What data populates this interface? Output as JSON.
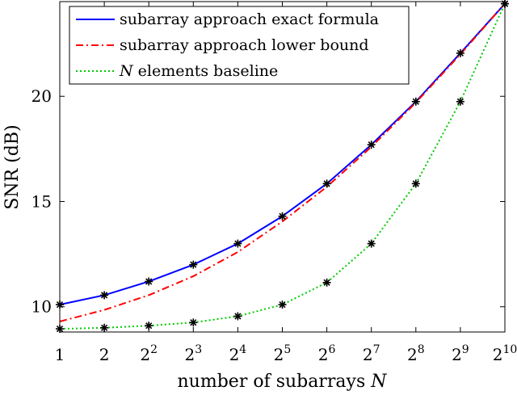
{
  "chart_data": {
    "type": "line",
    "xlabel_text": "number of subarrays ",
    "xlabel_var": "N",
    "ylabel": "SNR (dB)",
    "x": [
      0,
      1,
      2,
      3,
      4,
      5,
      6,
      7,
      8,
      9,
      10
    ],
    "xticks": [
      {
        "base": "1",
        "sup": ""
      },
      {
        "base": "2",
        "sup": ""
      },
      {
        "base": "2",
        "sup": "2"
      },
      {
        "base": "2",
        "sup": "3"
      },
      {
        "base": "2",
        "sup": "4"
      },
      {
        "base": "2",
        "sup": "5"
      },
      {
        "base": "2",
        "sup": "6"
      },
      {
        "base": "2",
        "sup": "7"
      },
      {
        "base": "2",
        "sup": "8"
      },
      {
        "base": "2",
        "sup": "9"
      },
      {
        "base": "2",
        "sup": "10"
      }
    ],
    "xlim": [
      0,
      10
    ],
    "ylim": [
      8.8,
      24.5
    ],
    "yticks": [
      10,
      15,
      20
    ],
    "legend_position": "top-left",
    "series": [
      {
        "name": "subarray approach exact formula",
        "color": "#0000ff",
        "style": "solid",
        "values": [
          10.1,
          10.55,
          11.2,
          12.0,
          13.0,
          14.3,
          15.85,
          17.7,
          19.75,
          22.05,
          24.4
        ]
      },
      {
        "name": "subarray approach lower bound",
        "color": "#ff0000",
        "style": "dashdot",
        "values": [
          9.3,
          9.85,
          10.55,
          11.45,
          12.6,
          14.05,
          15.7,
          17.6,
          19.7,
          22.0,
          24.4
        ]
      },
      {
        "name_var": "N",
        "name_rest": " elements baseline",
        "color": "#00cc00",
        "style": "dotted",
        "values": [
          8.95,
          9.0,
          9.1,
          9.25,
          9.55,
          10.1,
          11.15,
          13.0,
          15.85,
          19.75,
          24.4
        ]
      }
    ],
    "markers": {
      "symbol": "asterisk",
      "color": "#000000",
      "on_series": [
        0,
        2
      ]
    }
  }
}
